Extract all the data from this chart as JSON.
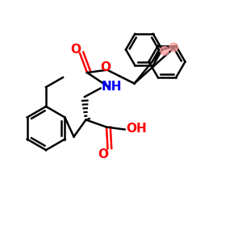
{
  "figsize": [
    3.0,
    3.0
  ],
  "dpi": 100,
  "background_color": "#ffffff",
  "bond_color": "#000000",
  "bond_width": 1.8,
  "atom_colors": {
    "O": "#ff0000",
    "N": "#0000ff",
    "C": "#000000"
  }
}
